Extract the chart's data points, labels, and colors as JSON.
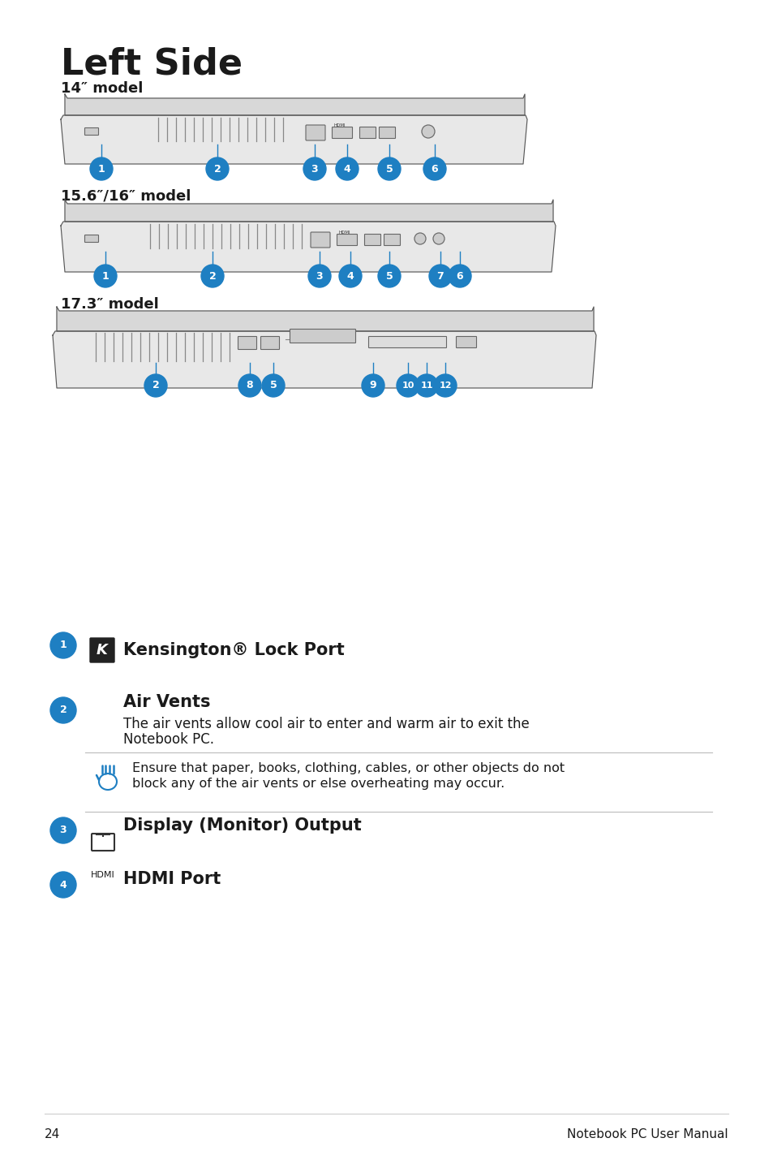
{
  "title": "Left Side",
  "bg_color": "#ffffff",
  "text_color": "#1a1a1a",
  "blue_color": "#1e7fc2",
  "page_number": "24",
  "footer_text": "Notebook PC User Manual",
  "model_labels": [
    "14″ model",
    "15.6″/16″ model",
    "17.3″ model"
  ],
  "items": [
    {
      "num": "1",
      "icon": "kensington",
      "title": "Kensington® Lock Port",
      "desc": ""
    },
    {
      "num": "2",
      "icon": "airvents",
      "title": "Air Vents",
      "desc": "The air vents allow cool air to enter and warm air to exit the\nNotebook PC."
    },
    {
      "num": "3",
      "icon": "monitor",
      "title": "Display (Monitor) Output",
      "desc": ""
    },
    {
      "num": "4",
      "icon": "hdmi",
      "title": "HDMI Port",
      "desc": ""
    }
  ],
  "warning_text": "Ensure that paper, books, clothing, cables, or other objects do not\nblock any of the air vents or else overheating may occur."
}
